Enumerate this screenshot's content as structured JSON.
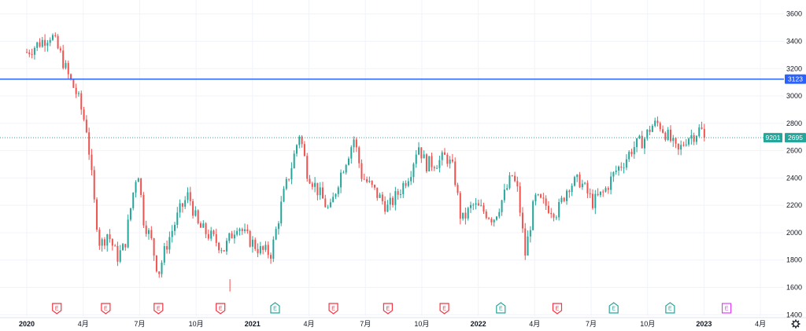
{
  "colors": {
    "up": "#26a69a",
    "down": "#ef5350",
    "level_line": "#2962ff",
    "last_price": "#26a69a",
    "grid": "#f0f3fa",
    "text": "#131722",
    "earnings_up": "#26a69a",
    "earnings_down": "#f23645",
    "earnings_future": "#e040fb",
    "settings_icon": "#131722"
  },
  "price_axis": {
    "ticks": [
      "3600",
      "3400",
      "3200",
      "3000",
      "2800",
      "2600",
      "2400",
      "2200",
      "2000",
      "1800",
      "1600",
      "1400"
    ],
    "min": 1350,
    "max": 3650,
    "level_label": "3123",
    "symbol_label": "9201",
    "last_price_label": "2695"
  },
  "time_axis": {
    "labels": [
      {
        "text": "2020",
        "bold": true
      },
      {
        "text": "4月",
        "bold": false
      },
      {
        "text": "7月",
        "bold": false
      },
      {
        "text": "10月",
        "bold": false
      },
      {
        "text": "2021",
        "bold": true
      },
      {
        "text": "4月",
        "bold": false
      },
      {
        "text": "7月",
        "bold": false
      },
      {
        "text": "10月",
        "bold": false
      },
      {
        "text": "2022",
        "bold": true
      },
      {
        "text": "4月",
        "bold": false
      },
      {
        "text": "7月",
        "bold": false
      },
      {
        "text": "10月",
        "bold": false
      },
      {
        "text": "2023",
        "bold": true
      },
      {
        "text": "4月",
        "bold": false
      }
    ]
  },
  "earnings": {
    "letter": "E",
    "markers": [
      {
        "month": 1.6,
        "kind": "down"
      },
      {
        "month": 4.2,
        "kind": "down"
      },
      {
        "month": 7.0,
        "kind": "down"
      },
      {
        "month": 10.3,
        "kind": "down"
      },
      {
        "month": 13.2,
        "kind": "up"
      },
      {
        "month": 16.3,
        "kind": "down"
      },
      {
        "month": 19.2,
        "kind": "down"
      },
      {
        "month": 22.2,
        "kind": "down"
      },
      {
        "month": 25.2,
        "kind": "up"
      },
      {
        "month": 28.2,
        "kind": "down"
      },
      {
        "month": 31.2,
        "kind": "up"
      },
      {
        "month": 34.2,
        "kind": "up"
      },
      {
        "month": 37.2,
        "kind": "future"
      }
    ]
  },
  "chart_data": {
    "type": "candlestick",
    "symbol": "9201",
    "title": "",
    "xlabel": "",
    "ylabel": "",
    "ylim": [
      1350,
      3650
    ],
    "horizontal_line": 3123,
    "last_price": 2695,
    "anchors": [
      [
        0,
        3320
      ],
      [
        1.3,
        3450
      ],
      [
        1.8,
        3300
      ],
      [
        2.2,
        3150
      ],
      [
        2.7,
        3000
      ],
      [
        3.2,
        2750
      ],
      [
        3.6,
        2200
      ],
      [
        3.9,
        1900
      ],
      [
        4.3,
        2000
      ],
      [
        4.8,
        1820
      ],
      [
        5.2,
        1900
      ],
      [
        5.6,
        2250
      ],
      [
        5.9,
        2480
      ],
      [
        6.2,
        2100
      ],
      [
        6.6,
        1950
      ],
      [
        7.0,
        1700
      ],
      [
        7.4,
        1900
      ],
      [
        8.1,
        2150
      ],
      [
        8.6,
        2280
      ],
      [
        9.1,
        2050
      ],
      [
        9.8,
        1970
      ],
      [
        10.5,
        1880
      ],
      [
        11.2,
        2070
      ],
      [
        11.6,
        1980
      ],
      [
        12.4,
        1870
      ],
      [
        13.0,
        1850
      ],
      [
        13.6,
        2250
      ],
      [
        14.1,
        2500
      ],
      [
        14.5,
        2730
      ],
      [
        14.9,
        2450
      ],
      [
        15.5,
        2300
      ],
      [
        16.1,
        2150
      ],
      [
        16.6,
        2400
      ],
      [
        17.1,
        2580
      ],
      [
        17.4,
        2690
      ],
      [
        17.8,
        2420
      ],
      [
        18.5,
        2300
      ],
      [
        19.2,
        2180
      ],
      [
        19.8,
        2300
      ],
      [
        20.4,
        2450
      ],
      [
        20.8,
        2650
      ],
      [
        21.2,
        2500
      ],
      [
        21.9,
        2520
      ],
      [
        22.3,
        2560
      ],
      [
        22.7,
        2450
      ],
      [
        23.1,
        2080
      ],
      [
        23.7,
        2200
      ],
      [
        24.4,
        2150
      ],
      [
        24.8,
        2100
      ],
      [
        25.4,
        2280
      ],
      [
        25.8,
        2420
      ],
      [
        26.1,
        2300
      ],
      [
        26.5,
        1840
      ],
      [
        27.0,
        2250
      ],
      [
        27.6,
        2200
      ],
      [
        28.2,
        2150
      ],
      [
        28.8,
        2350
      ],
      [
        29.4,
        2380
      ],
      [
        30.1,
        2220
      ],
      [
        30.7,
        2300
      ],
      [
        31.3,
        2450
      ],
      [
        31.8,
        2530
      ],
      [
        32.2,
        2620
      ],
      [
        32.8,
        2680
      ],
      [
        33.2,
        2780
      ],
      [
        33.6,
        2800
      ],
      [
        34.2,
        2680
      ],
      [
        34.6,
        2580
      ],
      [
        35.1,
        2700
      ],
      [
        35.5,
        2720
      ],
      [
        35.8,
        2760
      ],
      [
        36.1,
        2695
      ]
    ],
    "spike_low": {
      "month": 10.8,
      "low": 1570
    }
  }
}
